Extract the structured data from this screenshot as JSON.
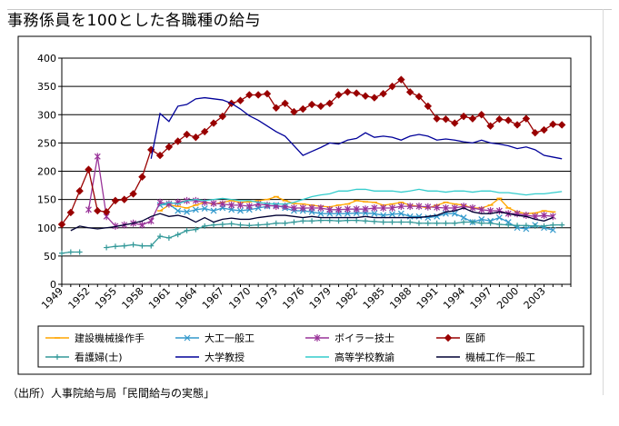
{
  "title": "事務係員を100とした各職種の給与",
  "source": "（出所）人事院給与局「民間給与の実態」",
  "chart_data": {
    "type": "line",
    "title": "事務係員を100とした各職種の給与",
    "ylim": [
      0,
      400
    ],
    "yticks": [
      0,
      50,
      100,
      150,
      200,
      250,
      300,
      350,
      400
    ],
    "xlim": [
      1949,
      2006
    ],
    "xticks": [
      1949,
      1952,
      1955,
      1958,
      1961,
      1964,
      1967,
      1970,
      1973,
      1976,
      1979,
      1982,
      1985,
      1988,
      1991,
      1994,
      1997,
      2000,
      2003
    ],
    "grid": "horizontal",
    "legend_position": "bottom",
    "series": [
      {
        "name": "建設機械操作手",
        "color": "#ffa500",
        "marker": "dash",
        "x": [
          1960,
          1961,
          1962,
          1963,
          1964,
          1965,
          1966,
          1967,
          1968,
          1969,
          1970,
          1971,
          1972,
          1973,
          1974,
          1975,
          1976,
          1977,
          1978,
          1979,
          1980,
          1981,
          1982,
          1983,
          1984,
          1985,
          1986,
          1987,
          1988,
          1989,
          1990,
          1991,
          1992,
          1993,
          1994,
          1995,
          1996,
          1997,
          1998,
          1999,
          2000,
          2001,
          2002,
          2003,
          2004
        ],
        "y": [
          130,
          140,
          138,
          135,
          140,
          145,
          142,
          145,
          148,
          145,
          146,
          148,
          150,
          155,
          148,
          143,
          142,
          140,
          138,
          137,
          140,
          142,
          148,
          146,
          145,
          140,
          142,
          145,
          140,
          138,
          135,
          140,
          145,
          142,
          140,
          135,
          135,
          140,
          152,
          135,
          128,
          125,
          126,
          130,
          128
        ]
      },
      {
        "name": "大工一般工",
        "color": "#3399cc",
        "marker": "x",
        "x": [
          1960,
          1961,
          1962,
          1963,
          1964,
          1965,
          1966,
          1967,
          1968,
          1969,
          1970,
          1971,
          1972,
          1973,
          1974,
          1975,
          1976,
          1977,
          1978,
          1979,
          1980,
          1981,
          1982,
          1983,
          1984,
          1985,
          1986,
          1987,
          1988,
          1989,
          1990,
          1991,
          1992,
          1993,
          1994,
          1995,
          1996,
          1997,
          1998,
          1999,
          2000,
          2001,
          2002,
          2003,
          2004
        ],
        "y": [
          140,
          142,
          130,
          128,
          132,
          134,
          130,
          135,
          132,
          130,
          132,
          135,
          138,
          140,
          135,
          130,
          130,
          128,
          125,
          125,
          125,
          125,
          126,
          126,
          125,
          122,
          124,
          125,
          120,
          120,
          118,
          120,
          125,
          125,
          118,
          110,
          115,
          112,
          118,
          110,
          100,
          98,
          105,
          100,
          96
        ]
      },
      {
        "name": "ボイラー技士",
        "color": "#993399",
        "marker": "star",
        "x": [
          1952,
          1953,
          1954,
          1955,
          1956,
          1957,
          1958,
          1959,
          1960,
          1961,
          1962,
          1963,
          1964,
          1965,
          1966,
          1967,
          1968,
          1969,
          1970,
          1971,
          1972,
          1973,
          1974,
          1975,
          1976,
          1977,
          1978,
          1979,
          1980,
          1981,
          1982,
          1983,
          1984,
          1985,
          1986,
          1987,
          1988,
          1989,
          1990,
          1991,
          1992,
          1993,
          1994,
          1995,
          1996,
          1997,
          1998,
          1999,
          2000,
          2001,
          2002,
          2003,
          2004
        ],
        "y": [
          132,
          226,
          120,
          103,
          105,
          108,
          105,
          112,
          145,
          142,
          145,
          148,
          148,
          145,
          143,
          142,
          140,
          140,
          138,
          142,
          140,
          138,
          138,
          135,
          135,
          135,
          135,
          132,
          132,
          133,
          133,
          133,
          135,
          135,
          135,
          138,
          138,
          138,
          137,
          136,
          135,
          135,
          138,
          135,
          132,
          130,
          130,
          125,
          125,
          122,
          120,
          122,
          120
        ]
      },
      {
        "name": "医師",
        "color": "#990000",
        "marker": "diamond",
        "x": [
          1949,
          1950,
          1951,
          1952,
          1953,
          1954,
          1955,
          1956,
          1957,
          1958,
          1959,
          1960,
          1961,
          1962,
          1963,
          1964,
          1965,
          1966,
          1967,
          1968,
          1969,
          1970,
          1971,
          1972,
          1973,
          1974,
          1975,
          1976,
          1977,
          1978,
          1979,
          1980,
          1981,
          1982,
          1983,
          1984,
          1985,
          1986,
          1987,
          1988,
          1989,
          1990,
          1991,
          1992,
          1993,
          1994,
          1995,
          1996,
          1997,
          1998,
          1999,
          2000,
          2001,
          2002,
          2003,
          2004,
          2005
        ],
        "y": [
          106,
          127,
          165,
          203,
          130,
          128,
          148,
          150,
          160,
          190,
          238,
          228,
          243,
          253,
          265,
          260,
          270,
          285,
          297,
          320,
          325,
          335,
          335,
          337,
          312,
          320,
          305,
          310,
          318,
          315,
          320,
          335,
          340,
          338,
          333,
          330,
          337,
          350,
          362,
          340,
          332,
          315,
          293,
          292,
          285,
          297,
          293,
          300,
          280,
          292,
          290,
          282,
          293,
          268,
          273,
          283,
          282
        ]
      },
      {
        "name": "看護婦(士)",
        "color": "#339999",
        "marker": "plus",
        "x": [
          1949,
          1950,
          1951,
          1952,
          1953,
          1954,
          1955,
          1956,
          1957,
          1958,
          1959,
          1960,
          1961,
          1962,
          1963,
          1964,
          1965,
          1966,
          1967,
          1968,
          1969,
          1970,
          1971,
          1972,
          1973,
          1974,
          1975,
          1976,
          1977,
          1978,
          1979,
          1980,
          1981,
          1982,
          1983,
          1984,
          1985,
          1986,
          1987,
          1988,
          1989,
          1990,
          1991,
          1992,
          1993,
          1994,
          1995,
          1996,
          1997,
          1998,
          1999,
          2000,
          2001,
          2002,
          2003,
          2004,
          2005
        ],
        "y": [
          55,
          57,
          57,
          null,
          null,
          65,
          67,
          68,
          70,
          68,
          68,
          85,
          82,
          88,
          95,
          97,
          103,
          105,
          106,
          107,
          105,
          104,
          105,
          106,
          108,
          108,
          110,
          112,
          112,
          113,
          113,
          112,
          113,
          113,
          112,
          111,
          110,
          110,
          110,
          110,
          108,
          108,
          108,
          108,
          108,
          110,
          110,
          108,
          108,
          106,
          105,
          104,
          104,
          103,
          103,
          105,
          105
        ]
      },
      {
        "name": "大学教授",
        "color": "#000099",
        "marker": "none",
        "x": [
          1950,
          1951,
          1952,
          1953,
          1954,
          1955,
          1956,
          1957,
          1958,
          1959,
          1960,
          1961,
          1962,
          1963,
          1964,
          1965,
          1966,
          1967,
          1968,
          1969,
          1970,
          1971,
          1972,
          1973,
          1974,
          1975,
          1976,
          1977,
          1978,
          1979,
          1980,
          1981,
          1982,
          1983,
          1984,
          1985,
          1986,
          1987,
          1988,
          1989,
          1990,
          1991,
          1992,
          1993,
          1994,
          1995,
          1996,
          1997,
          1998,
          1999,
          2000,
          2001,
          2002,
          2003,
          2004,
          2005
        ],
        "y": [
          null,
          null,
          null,
          null,
          null,
          null,
          null,
          null,
          null,
          222,
          302,
          288,
          315,
          318,
          328,
          330,
          328,
          326,
          320,
          310,
          298,
          290,
          280,
          270,
          262,
          245,
          228,
          235,
          242,
          250,
          248,
          255,
          258,
          268,
          260,
          262,
          260,
          255,
          262,
          265,
          262,
          255,
          257,
          255,
          252,
          250,
          255,
          250,
          248,
          245,
          240,
          243,
          238,
          228,
          225,
          222
        ]
      },
      {
        "name": "高等学校教諭",
        "color": "#33cccc",
        "marker": "none",
        "x": [
          1960,
          1961,
          1962,
          1963,
          1964,
          1965,
          1966,
          1967,
          1968,
          1969,
          1970,
          1971,
          1972,
          1973,
          1974,
          1975,
          1976,
          1977,
          1978,
          1979,
          1980,
          1981,
          1982,
          1983,
          1984,
          1985,
          1986,
          1987,
          1988,
          1989,
          1990,
          1991,
          1992,
          1993,
          1994,
          1995,
          1996,
          1997,
          1998,
          1999,
          2000,
          2001,
          2002,
          2003,
          2004,
          2005
        ],
        "y": [
          140,
          145,
          142,
          148,
          150,
          148,
          150,
          152,
          150,
          148,
          148,
          145,
          143,
          142,
          142,
          145,
          150,
          155,
          158,
          160,
          165,
          165,
          168,
          168,
          165,
          165,
          165,
          163,
          165,
          168,
          165,
          165,
          163,
          165,
          165,
          163,
          165,
          165,
          162,
          162,
          160,
          158,
          160,
          160,
          162,
          164
        ]
      },
      {
        "name": "機械工作一般工",
        "color": "#000033",
        "marker": "none",
        "x": [
          1950,
          1951,
          1952,
          1953,
          1954,
          1955,
          1956,
          1957,
          1958,
          1959,
          1960,
          1961,
          1962,
          1963,
          1964,
          1965,
          1966,
          1967,
          1968,
          1969,
          1970,
          1971,
          1972,
          1973,
          1974,
          1975,
          1976,
          1977,
          1978,
          1979,
          1980,
          1981,
          1982,
          1983,
          1984,
          1985,
          1986,
          1987,
          1988,
          1989,
          1990,
          1991,
          1992,
          1993,
          1994,
          1995,
          1996,
          1997,
          1998,
          1999,
          2000,
          2001,
          2002,
          2003,
          2004
        ],
        "y": [
          95,
          103,
          100,
          98,
          100,
          102,
          105,
          108,
          112,
          120,
          125,
          120,
          122,
          118,
          110,
          118,
          110,
          115,
          117,
          115,
          115,
          118,
          120,
          122,
          122,
          120,
          118,
          120,
          118,
          118,
          118,
          118,
          118,
          120,
          118,
          118,
          118,
          118,
          118,
          118,
          120,
          122,
          128,
          130,
          135,
          128,
          125,
          125,
          128,
          125,
          122,
          120,
          115,
          112,
          118
        ]
      }
    ]
  }
}
